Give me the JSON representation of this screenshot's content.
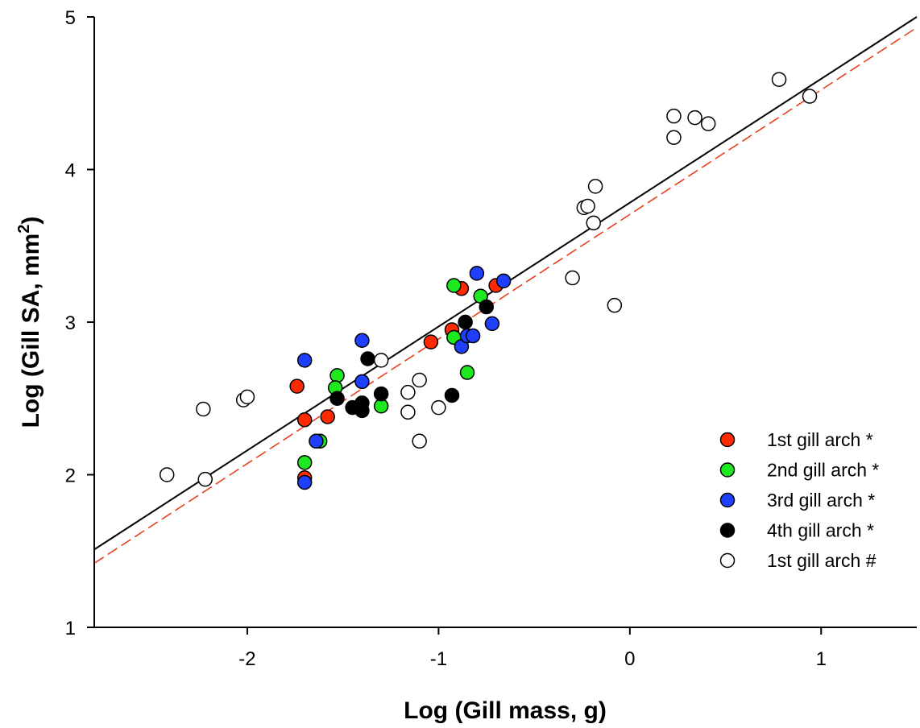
{
  "chart_data": {
    "type": "scatter",
    "xlabel": "Log (Gill mass, g)",
    "ylabel_main": "Log (Gill SA, mm",
    "ylabel_sup": "2",
    "ylabel_end": ")",
    "xlim": [
      -2.8,
      1.5
    ],
    "ylim": [
      1,
      5
    ],
    "xticks": [
      -2,
      -1,
      0,
      1
    ],
    "xtick_labels": [
      "-2",
      "-1",
      "0",
      "1"
    ],
    "yticks": [
      1,
      2,
      3,
      4,
      5
    ],
    "ytick_labels": [
      "1",
      "2",
      "3",
      "4",
      "5"
    ],
    "grid": false,
    "legend_position": "bottom-right",
    "series": [
      {
        "name": "1st gill arch *",
        "fill": "#ff2a00",
        "points": [
          [
            -1.74,
            2.58
          ],
          [
            -1.7,
            2.36
          ],
          [
            -1.7,
            1.98
          ],
          [
            -1.58,
            2.38
          ],
          [
            -1.04,
            2.87
          ],
          [
            -0.93,
            2.95
          ],
          [
            -0.88,
            3.22
          ],
          [
            -0.7,
            3.24
          ]
        ]
      },
      {
        "name": "2nd gill arch *",
        "fill": "#1ee81e",
        "points": [
          [
            -1.7,
            2.08
          ],
          [
            -1.62,
            2.22
          ],
          [
            -1.53,
            2.65
          ],
          [
            -1.54,
            2.57
          ],
          [
            -1.3,
            2.45
          ],
          [
            -0.92,
            3.24
          ],
          [
            -0.92,
            2.9
          ],
          [
            -0.85,
            2.67
          ],
          [
            -0.78,
            3.17
          ]
        ]
      },
      {
        "name": "3rd gill arch *",
        "fill": "#1f3fff",
        "points": [
          [
            -1.7,
            2.75
          ],
          [
            -1.7,
            1.95
          ],
          [
            -1.64,
            2.22
          ],
          [
            -1.4,
            2.88
          ],
          [
            -1.4,
            2.61
          ],
          [
            -0.88,
            2.84
          ],
          [
            -0.85,
            2.91
          ],
          [
            -0.82,
            2.91
          ],
          [
            -0.8,
            3.32
          ],
          [
            -0.72,
            2.99
          ],
          [
            -0.66,
            3.27
          ]
        ]
      },
      {
        "name": "4th gill arch *",
        "fill": "#000000",
        "points": [
          [
            -1.53,
            2.5
          ],
          [
            -1.45,
            2.44
          ],
          [
            -1.4,
            2.42
          ],
          [
            -1.4,
            2.47
          ],
          [
            -1.37,
            2.76
          ],
          [
            -1.3,
            2.53
          ],
          [
            -0.93,
            2.52
          ],
          [
            -0.86,
            3.0
          ],
          [
            -0.75,
            3.1
          ]
        ]
      },
      {
        "name": "1st gill arch #",
        "fill": "#ffffff",
        "points": [
          [
            -2.42,
            2.0
          ],
          [
            -2.23,
            2.43
          ],
          [
            -2.22,
            1.97
          ],
          [
            -2.02,
            2.49
          ],
          [
            -2.0,
            2.51
          ],
          [
            -1.3,
            2.75
          ],
          [
            -1.16,
            2.54
          ],
          [
            -1.16,
            2.41
          ],
          [
            -1.1,
            2.62
          ],
          [
            -1.1,
            2.22
          ],
          [
            -1.0,
            2.44
          ],
          [
            -0.3,
            3.29
          ],
          [
            -0.24,
            3.75
          ],
          [
            -0.22,
            3.76
          ],
          [
            -0.19,
            3.65
          ],
          [
            -0.18,
            3.89
          ],
          [
            -0.08,
            3.11
          ],
          [
            0.23,
            4.35
          ],
          [
            0.23,
            4.21
          ],
          [
            0.34,
            4.34
          ],
          [
            0.41,
            4.3
          ],
          [
            0.78,
            4.59
          ],
          [
            0.94,
            4.48
          ]
        ]
      }
    ],
    "fit_lines": [
      {
        "style": "solid",
        "color": "#000000",
        "x": [
          -2.8,
          1.5
        ],
        "y": [
          1.51,
          5.0
        ]
      },
      {
        "style": "dashed",
        "color": "#e8401c",
        "x": [
          -2.8,
          1.5
        ],
        "y": [
          1.42,
          4.93
        ]
      }
    ]
  }
}
